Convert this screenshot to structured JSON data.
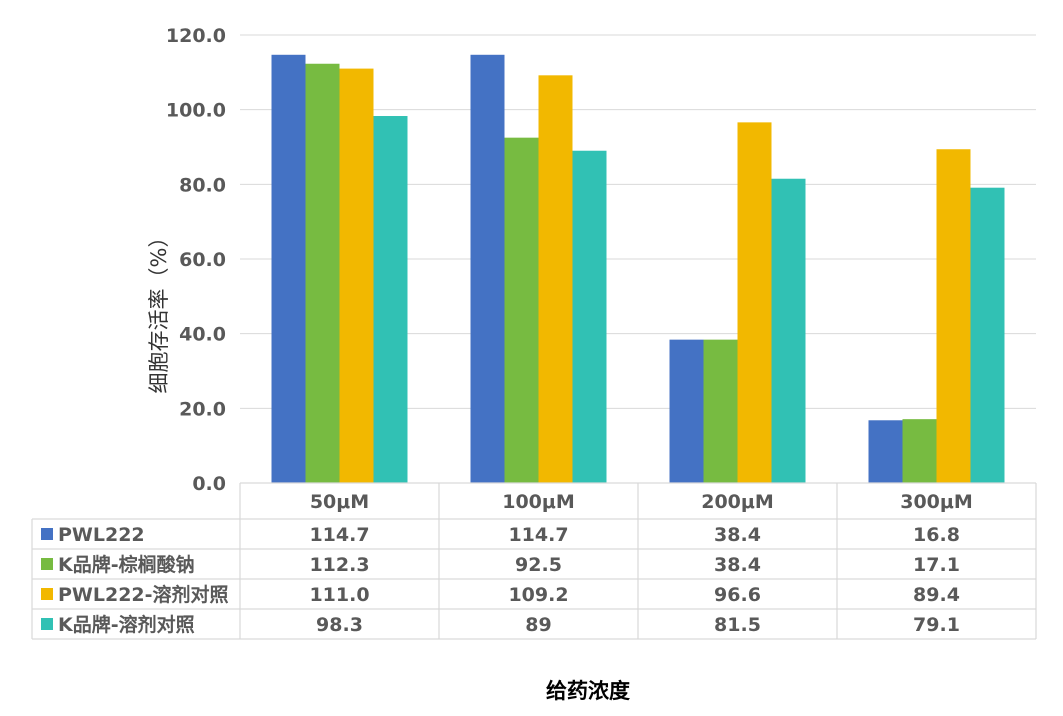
{
  "chart_data": {
    "type": "bar",
    "categories": [
      "50μM",
      "100μM",
      "200μM",
      "300μM"
    ],
    "series": [
      {
        "name": "PWL222",
        "values": [
          114.7,
          114.7,
          38.4,
          16.8
        ],
        "labels": [
          "114.7",
          "114.7",
          "38.4",
          "16.8"
        ],
        "color": "#4472C4"
      },
      {
        "name": "K品牌-棕榈酸钠",
        "values": [
          112.3,
          92.5,
          38.4,
          17.1
        ],
        "labels": [
          "112.3",
          "92.5",
          "38.4",
          "17.1"
        ],
        "color": "#77BB41"
      },
      {
        "name": "PWL222-溶剂对照",
        "values": [
          111.0,
          109.2,
          96.6,
          89.4
        ],
        "labels": [
          "111.0",
          "109.2",
          "96.6",
          "89.4"
        ],
        "color": "#F2B800"
      },
      {
        "name": "K品牌-溶剂对照",
        "values": [
          98.3,
          89,
          81.5,
          79.1
        ],
        "labels": [
          "98.3",
          "89",
          "81.5",
          "79.1"
        ],
        "color": "#31C1B4"
      }
    ],
    "ylim": [
      0,
      120
    ],
    "yticks": [
      "0.0",
      "20.0",
      "40.0",
      "60.0",
      "80.0",
      "100.0",
      "120.0"
    ],
    "ylabel": "细胞存活率（%）",
    "xlabel": "给药浓度",
    "grid": true,
    "legend": "data-table"
  }
}
